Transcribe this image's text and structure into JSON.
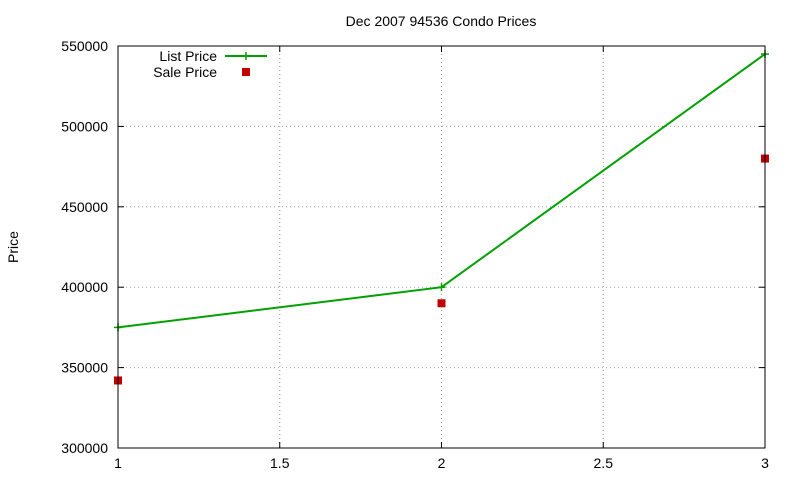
{
  "chart_data": {
    "type": "line",
    "title": "Dec 2007 94536 Condo Prices",
    "xlabel": "",
    "ylabel": "Price",
    "xlim": [
      1,
      3
    ],
    "ylim": [
      300000,
      550000
    ],
    "x_ticks": [
      "1",
      "1.5",
      "2",
      "2.5",
      "3"
    ],
    "y_ticks": [
      "300000",
      "350000",
      "400000",
      "450000",
      "500000",
      "550000"
    ],
    "grid": true,
    "legend_position": "top-left",
    "series": [
      {
        "name": "List Price",
        "style": "linespoints",
        "color": "#00a000",
        "marker": "plus",
        "points": [
          [
            1,
            375000
          ],
          [
            2,
            400000
          ],
          [
            3,
            545000
          ]
        ]
      },
      {
        "name": "Sale Price",
        "style": "points",
        "color": "#c00000",
        "marker": "square",
        "points": [
          [
            1,
            342000
          ],
          [
            2,
            390000
          ],
          [
            3,
            480000
          ]
        ]
      }
    ]
  }
}
